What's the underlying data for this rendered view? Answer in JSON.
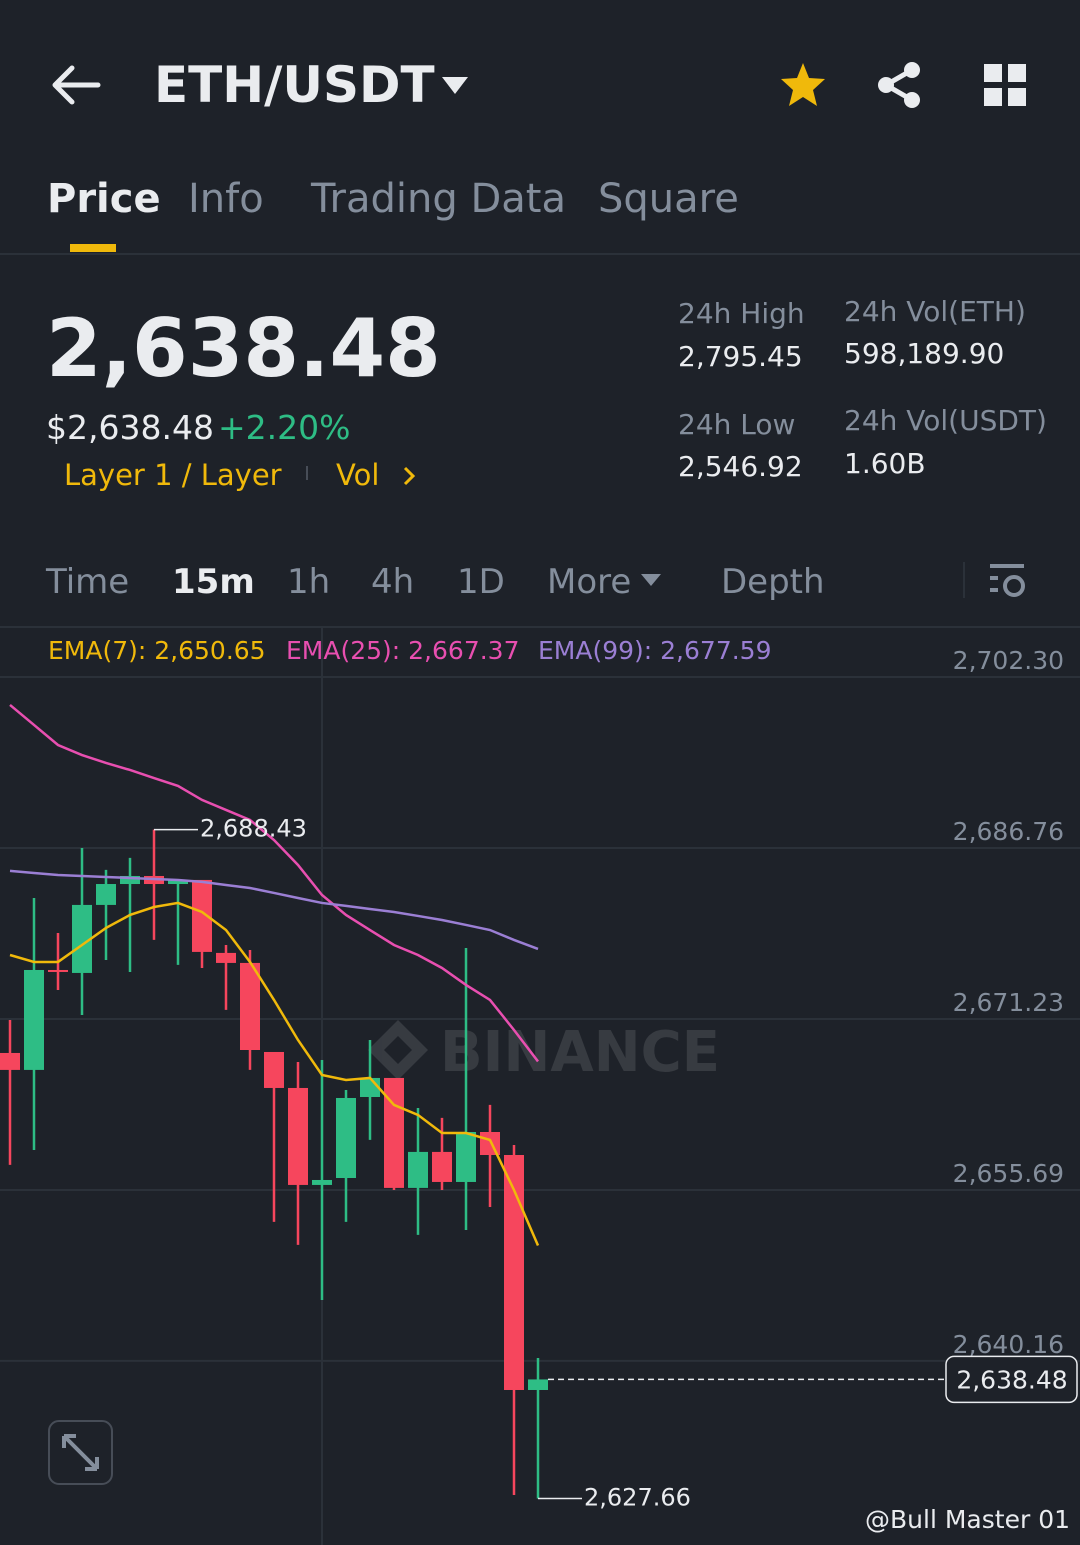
{
  "header": {
    "pair": "ETH/USDT"
  },
  "tabs": [
    "Price",
    "Info",
    "Trading Data",
    "Square"
  ],
  "price": {
    "last": "2,638.48",
    "usd": "$2,638.48",
    "change": "+2.20%",
    "tag": "Layer 1 / Layer",
    "vol": "Vol"
  },
  "stats": [
    {
      "label": "24h High",
      "value": "2,795.45"
    },
    {
      "label": "24h Vol(ETH)",
      "value": "598,189.90"
    },
    {
      "label": "24h Low",
      "value": "2,546.92"
    },
    {
      "label": "24h Vol(USDT)",
      "value": "1.60B"
    }
  ],
  "intervals": [
    "Time",
    "15m",
    "1h",
    "4h",
    "1D",
    "More",
    "Depth"
  ],
  "watermark": "BINANCE",
  "footer": {
    "credit": "@Bull Master 01"
  },
  "chart_data": {
    "type": "candlestick",
    "up_color": "#2ebd85",
    "down_color": "#f6465d",
    "ylim": [
      2624.8,
      2706.75
    ],
    "yticks": [
      {
        "value": 2702.3,
        "label": "2,702.30"
      },
      {
        "value": 2686.76,
        "label": "2,686.76"
      },
      {
        "value": 2671.23,
        "label": "2,671.23"
      },
      {
        "value": 2655.69,
        "label": "2,655.69"
      },
      {
        "value": 2640.16,
        "label": "2,640.16"
      }
    ],
    "grid": true,
    "candles": [
      {
        "open": 2668.14,
        "high": 2671.14,
        "low": 2657.97,
        "close": 2666.6
      },
      {
        "open": 2666.6,
        "high": 2682.22,
        "low": 2659.33,
        "close": 2675.68
      },
      {
        "open": 2675.68,
        "high": 2679.04,
        "low": 2673.86,
        "close": 2675.5
      },
      {
        "open": 2675.41,
        "high": 2686.76,
        "low": 2671.59,
        "close": 2681.59
      },
      {
        "open": 2681.59,
        "high": 2684.77,
        "low": 2676.59,
        "close": 2683.49
      },
      {
        "open": 2683.49,
        "high": 2685.86,
        "low": 2675.5,
        "close": 2684.22
      },
      {
        "open": 2684.22,
        "high": 2688.43,
        "low": 2678.41,
        "close": 2683.49
      },
      {
        "open": 2683.49,
        "high": 2683.86,
        "low": 2676.14,
        "close": 2683.86
      },
      {
        "open": 2683.86,
        "high": 2683.86,
        "low": 2675.86,
        "close": 2677.32
      },
      {
        "open": 2677.23,
        "high": 2677.95,
        "low": 2672.05,
        "close": 2676.32
      },
      {
        "open": 2676.32,
        "high": 2677.5,
        "low": 2666.6,
        "close": 2668.41
      },
      {
        "open": 2668.23,
        "high": 2668.23,
        "low": 2652.79,
        "close": 2664.96
      },
      {
        "open": 2664.96,
        "high": 2667.32,
        "low": 2650.7,
        "close": 2656.15
      },
      {
        "open": 2656.15,
        "high": 2667.5,
        "low": 2645.7,
        "close": 2656.6
      },
      {
        "open": 2656.78,
        "high": 2664.78,
        "low": 2652.79,
        "close": 2664.05
      },
      {
        "open": 2664.14,
        "high": 2669.32,
        "low": 2660.24,
        "close": 2665.87
      },
      {
        "open": 2665.87,
        "high": 2665.87,
        "low": 2655.69,
        "close": 2655.88
      },
      {
        "open": 2655.88,
        "high": 2663.14,
        "low": 2651.61,
        "close": 2659.15
      },
      {
        "open": 2659.15,
        "high": 2662.24,
        "low": 2655.69,
        "close": 2656.42
      },
      {
        "open": 2656.42,
        "high": 2677.68,
        "low": 2652.06,
        "close": 2660.96
      },
      {
        "open": 2660.96,
        "high": 2663.42,
        "low": 2654.15,
        "close": 2658.87
      },
      {
        "open": 2658.87,
        "high": 2659.78,
        "low": 2627.98,
        "close": 2637.52
      },
      {
        "open": 2637.52,
        "high": 2640.43,
        "low": 2627.66,
        "close": 2638.48
      }
    ],
    "series": [
      {
        "name": "EMA(7): 2,650.65",
        "color": "#f0b90b",
        "values": [
          2677.04,
          2676.41,
          2676.41,
          2677.95,
          2679.5,
          2680.68,
          2681.4,
          2681.77,
          2680.95,
          2679.31,
          2676.41,
          2672.96,
          2669.32,
          2666.14,
          2665.69,
          2665.87,
          2663.42,
          2662.51,
          2660.87,
          2660.87,
          2660.24,
          2655.69,
          2650.65
        ]
      },
      {
        "name": "EMA(25): 2,667.37",
        "color": "#e84fb0",
        "values": [
          2699.76,
          2697.94,
          2696.12,
          2695.21,
          2694.49,
          2693.85,
          2693.12,
          2692.4,
          2691.13,
          2690.22,
          2689.31,
          2687.49,
          2685.22,
          2682.49,
          2680.68,
          2679.31,
          2677.95,
          2677.04,
          2675.86,
          2674.32,
          2672.96,
          2670.23,
          2667.37
        ]
      },
      {
        "name": "EMA(99): 2,677.59",
        "color": "#9b7fd4",
        "values": [
          2684.68,
          2684.49,
          2684.31,
          2684.22,
          2684.13,
          2684.04,
          2683.95,
          2683.86,
          2683.68,
          2683.4,
          2683.13,
          2682.68,
          2682.22,
          2681.77,
          2681.5,
          2681.22,
          2680.95,
          2680.59,
          2680.22,
          2679.77,
          2679.31,
          2678.41,
          2677.59
        ]
      }
    ],
    "annotations": [
      {
        "value": 2688.43,
        "label": "2,688.43"
      },
      {
        "value": 2627.66,
        "label": "2,627.66"
      }
    ],
    "current": {
      "value": 2638.48,
      "label": "2,638.48"
    }
  }
}
